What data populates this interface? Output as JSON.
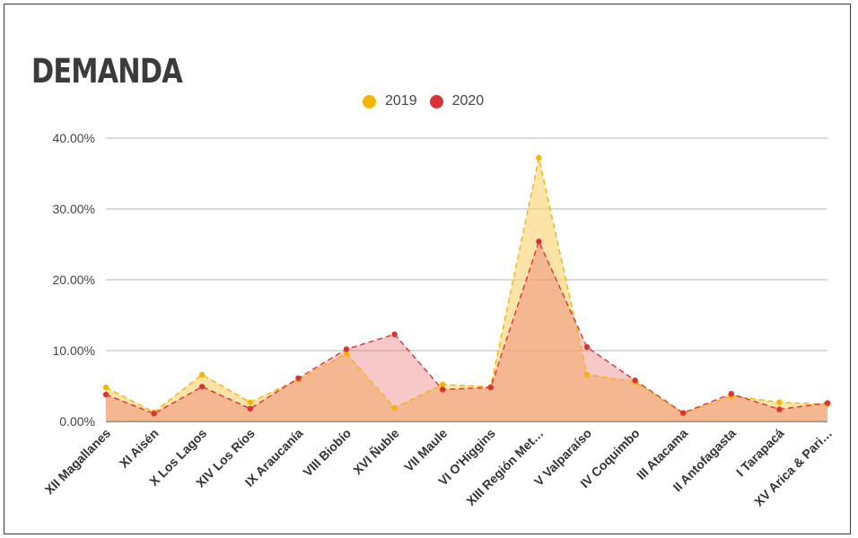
{
  "chart_data": {
    "type": "area",
    "title": "DEMANDA",
    "categories": [
      "XII Magallanes",
      "XI Aisén",
      "X Los Lagos",
      "XIV Los Ríos",
      "IX Araucanía",
      "VIII Biobío",
      "XVI Ñuble",
      "VII Maule",
      "VI O'Higgins",
      "XIII Región Met…",
      "V Valparaíso",
      "IV Coquimbo",
      "III Atacama",
      "II Antofagasta",
      "I Tarapacá",
      "XV Arica & Pari…"
    ],
    "series": [
      {
        "name": "2019",
        "color": "#f4b400",
        "values": [
          4.8,
          1.3,
          6.6,
          2.7,
          5.9,
          9.6,
          1.9,
          5.2,
          4.9,
          37.2,
          6.6,
          5.6,
          1.1,
          3.6,
          2.7,
          2.4
        ]
      },
      {
        "name": "2020",
        "color": "#db3236",
        "values": [
          3.8,
          1.1,
          4.9,
          1.8,
          6.1,
          10.2,
          12.3,
          4.5,
          4.8,
          25.4,
          10.5,
          5.8,
          1.2,
          3.9,
          1.7,
          2.6
        ]
      }
    ],
    "ylim": [
      0,
      40
    ],
    "yticks": [
      "0.00%",
      "10.00%",
      "20.00%",
      "30.00%",
      "40.00%"
    ],
    "grid": true,
    "legend_position": "top-center",
    "xlabel": "",
    "ylabel": ""
  }
}
